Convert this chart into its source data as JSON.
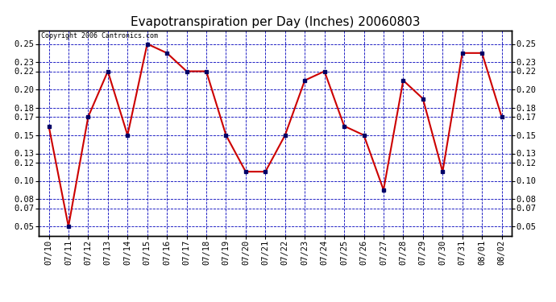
{
  "title": "Evapotranspiration per Day (Inches) 20060803",
  "copyright_text": "Copyright 2006 Cantronics.com",
  "dates": [
    "07/10",
    "07/11",
    "07/12",
    "07/13",
    "07/14",
    "07/15",
    "07/16",
    "07/17",
    "07/18",
    "07/19",
    "07/20",
    "07/21",
    "07/22",
    "07/23",
    "07/24",
    "07/25",
    "07/26",
    "07/27",
    "07/28",
    "07/29",
    "07/30",
    "07/31",
    "08/01",
    "08/02"
  ],
  "values": [
    0.16,
    0.05,
    0.17,
    0.22,
    0.15,
    0.25,
    0.24,
    0.22,
    0.22,
    0.15,
    0.11,
    0.11,
    0.15,
    0.21,
    0.22,
    0.16,
    0.15,
    0.09,
    0.21,
    0.19,
    0.11,
    0.24,
    0.24,
    0.17
  ],
  "yticks": [
    0.05,
    0.07,
    0.08,
    0.1,
    0.12,
    0.13,
    0.15,
    0.17,
    0.18,
    0.2,
    0.22,
    0.23,
    0.25
  ],
  "ylim": [
    0.04,
    0.265
  ],
  "line_color": "#cc0000",
  "marker_color": "#000066",
  "background_color": "#ffffff",
  "plot_bg_color": "#ffffff",
  "grid_color": "#0000bb",
  "title_fontsize": 11,
  "copyright_fontsize": 6,
  "tick_fontsize": 7.5
}
